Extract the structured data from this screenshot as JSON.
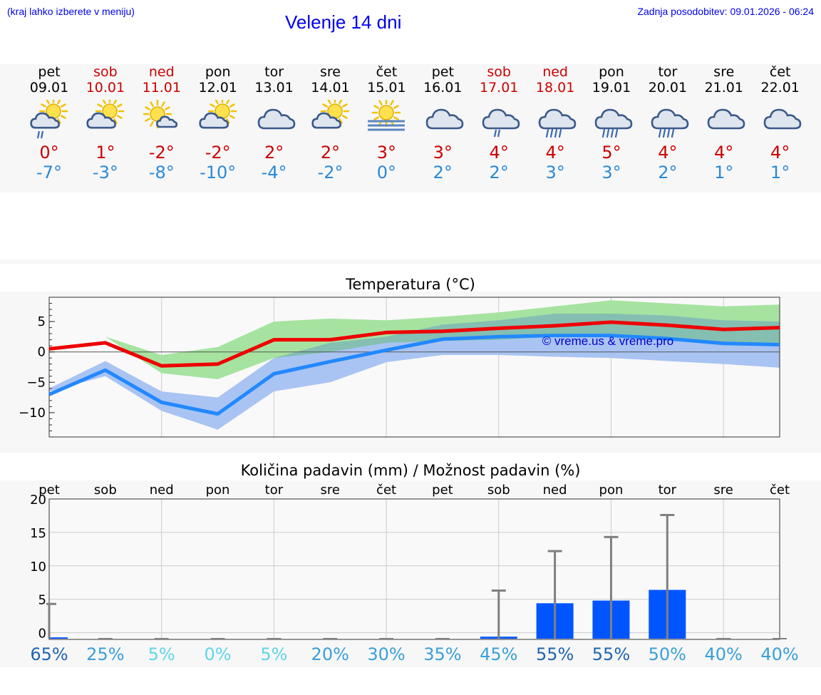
{
  "header": {
    "hint": "(kraj lahko izberete v meniju)",
    "title": "Velenje 14 dni",
    "updated": "Zadnja posodobitev: 09.01.2026 - 06:24"
  },
  "colors": {
    "weekend": "#cc0000",
    "max_line": "#ee0000",
    "min_line": "#2288ff",
    "max_band": "#a6e3a0",
    "min_band": "#a9c4f2",
    "overlap_band": "#7fbfaa",
    "precip_bar": "#0055ff",
    "error_bar": "#808080"
  },
  "days": [
    {
      "name": "pet",
      "date": "09.01",
      "weekend": false,
      "icon": "sun-cloud-drizzle-icon",
      "tmax": "0°",
      "tmin": "-7°"
    },
    {
      "name": "sob",
      "date": "10.01",
      "weekend": true,
      "icon": "sun-cloud-icon",
      "tmax": "1°",
      "tmin": "-3°"
    },
    {
      "name": "ned",
      "date": "11.01",
      "weekend": true,
      "icon": "sun-small-cloud-icon",
      "tmax": "-2°",
      "tmin": "-8°"
    },
    {
      "name": "pon",
      "date": "12.01",
      "weekend": false,
      "icon": "sun-cloud-icon",
      "tmax": "-2°",
      "tmin": "-10°"
    },
    {
      "name": "tor",
      "date": "13.01",
      "weekend": false,
      "icon": "cloud-icon",
      "tmax": "2°",
      "tmin": "-4°"
    },
    {
      "name": "sre",
      "date": "14.01",
      "weekend": false,
      "icon": "sun-cloud-icon",
      "tmax": "2°",
      "tmin": "-2°"
    },
    {
      "name": "čet",
      "date": "15.01",
      "weekend": false,
      "icon": "sun-fog-icon",
      "tmax": "3°",
      "tmin": "0°"
    },
    {
      "name": "pet",
      "date": "16.01",
      "weekend": false,
      "icon": "cloud-icon",
      "tmax": "3°",
      "tmin": "2°"
    },
    {
      "name": "sob",
      "date": "17.01",
      "weekend": true,
      "icon": "cloud-drizzle-icon",
      "tmax": "4°",
      "tmin": "2°"
    },
    {
      "name": "ned",
      "date": "18.01",
      "weekend": true,
      "icon": "cloud-rain-icon",
      "tmax": "4°",
      "tmin": "3°"
    },
    {
      "name": "pon",
      "date": "19.01",
      "weekend": false,
      "icon": "cloud-rain-icon",
      "tmax": "5°",
      "tmin": "3°"
    },
    {
      "name": "tor",
      "date": "20.01",
      "weekend": false,
      "icon": "cloud-rain-icon",
      "tmax": "4°",
      "tmin": "2°"
    },
    {
      "name": "sre",
      "date": "21.01",
      "weekend": false,
      "icon": "cloud-icon",
      "tmax": "4°",
      "tmin": "1°"
    },
    {
      "name": "čet",
      "date": "22.01",
      "weekend": false,
      "icon": "cloud-icon",
      "tmax": "4°",
      "tmin": "1°"
    }
  ],
  "chart_data": [
    {
      "type": "line",
      "title": "Temperatura (°C)",
      "ylim": [
        -14,
        9
      ],
      "yticks": [
        5,
        0,
        -5,
        -10
      ],
      "ytick_labels": [
        "5",
        "0",
        "−5",
        "−10"
      ],
      "watermark": "© vreme.us & vreme.pro",
      "grid": true,
      "series": [
        {
          "name": "max",
          "values": [
            0.5,
            1.5,
            -2.3,
            -2.0,
            2.0,
            2.0,
            3.2,
            3.4,
            3.9,
            4.3,
            4.9,
            4.4,
            3.7,
            4.0
          ],
          "band_low": [
            1.0,
            2.5,
            -3.5,
            -4.5,
            -1.0,
            0.0,
            1.5,
            1.8,
            2.0,
            2.5,
            2.5,
            2.0,
            1.5,
            1.2
          ],
          "band_high": [
            1.0,
            2.5,
            -0.5,
            0.8,
            5.0,
            5.5,
            5.2,
            5.8,
            6.5,
            7.5,
            8.5,
            8.0,
            7.5,
            7.8
          ]
        },
        {
          "name": "min",
          "values": [
            -7.0,
            -3.0,
            -8.3,
            -10.2,
            -3.6,
            -1.6,
            0.3,
            2.1,
            2.5,
            2.7,
            2.7,
            2.2,
            1.4,
            1.2
          ],
          "band_low": [
            -6.5,
            -4.0,
            -9.7,
            -12.8,
            -6.5,
            -5.0,
            -1.7,
            -0.5,
            -0.5,
            -0.8,
            -1.0,
            -1.5,
            -2.0,
            -2.6
          ],
          "band_high": [
            -6.0,
            -1.5,
            -6.5,
            -7.5,
            -1.0,
            1.5,
            2.5,
            4.5,
            5.2,
            6.3,
            6.3,
            6.0,
            5.2,
            5.0
          ]
        }
      ]
    },
    {
      "type": "bar",
      "title": "Količina padavin (mm) / Možnost padavin (%)",
      "categories": [
        "pet",
        "sob",
        "ned",
        "pon",
        "tor",
        "sre",
        "čet",
        "pet",
        "sob",
        "ned",
        "pon",
        "tor",
        "sre",
        "čet"
      ],
      "ylim": [
        -1,
        20
      ],
      "yticks": [
        20,
        15,
        10,
        5,
        0
      ],
      "values": [
        0.2,
        0.0,
        0.0,
        0.0,
        0.0,
        0.0,
        0.0,
        0.0,
        0.3,
        5.3,
        5.7,
        7.3,
        0.0,
        0.0
      ],
      "error_high": [
        5.2,
        0.0,
        0.0,
        0.0,
        0.0,
        0.0,
        0.0,
        0.0,
        7.2,
        13.1,
        15.2,
        18.5,
        0.0,
        0.0
      ],
      "chance": [
        "65%",
        "25%",
        "5%",
        "0%",
        "5%",
        "20%",
        "30%",
        "35%",
        "45%",
        "55%",
        "55%",
        "50%",
        "40%",
        "40%"
      ],
      "chance_colors": [
        "#1f64b0",
        "#3aa0d8",
        "#5fd6e6",
        "#5fd6e6",
        "#5fd6e6",
        "#3aa0d8",
        "#3aa0d8",
        "#3aa0d8",
        "#3aa0d8",
        "#1f64b0",
        "#1f64b0",
        "#3aa0d8",
        "#3aa0d8",
        "#3aa0d8"
      ]
    }
  ]
}
